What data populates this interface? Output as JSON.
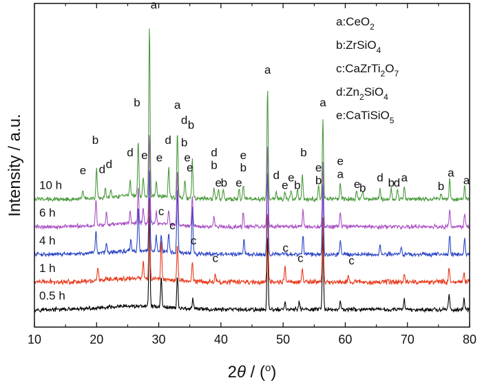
{
  "chart_data": {
    "type": "line",
    "xlabel": {
      "pre": "2",
      "theta": "θ",
      "post": " / (",
      "deg": "o",
      "close": ")"
    },
    "ylabel": "Intensity / a.u.",
    "xlim": [
      10,
      80
    ],
    "xticks": [
      10,
      20,
      30,
      40,
      50,
      60,
      70,
      80
    ],
    "legend_position": "top-right",
    "legend": [
      {
        "key": "a",
        "parts": [
          [
            "a:CeO",
            ""
          ],
          [
            "2",
            "sub"
          ]
        ]
      },
      {
        "key": "b",
        "parts": [
          [
            "b:ZrSiO",
            ""
          ],
          [
            "4",
            "sub"
          ]
        ]
      },
      {
        "key": "c",
        "parts": [
          [
            "c:CaZrTi",
            ""
          ],
          [
            "2",
            "sub"
          ],
          [
            "O",
            ""
          ],
          [
            "7",
            "sub"
          ]
        ]
      },
      {
        "key": "d",
        "parts": [
          [
            "d:Zn",
            ""
          ],
          [
            "2",
            "sub"
          ],
          [
            "SiO",
            ""
          ],
          [
            "4",
            "sub"
          ]
        ]
      },
      {
        "key": "e",
        "parts": [
          [
            "e:CaTiSiO",
            ""
          ],
          [
            "5",
            "sub"
          ]
        ]
      }
    ],
    "series": [
      {
        "name": "0.5 h",
        "color": "#000000",
        "offset": 0,
        "noise": 0.05,
        "peaks": [
          [
            28.5,
            1.8
          ],
          [
            30.4,
            0.6
          ],
          [
            33.0,
            0.65
          ],
          [
            35.5,
            0.18
          ],
          [
            47.5,
            1.45
          ],
          [
            50.3,
            0.15
          ],
          [
            52.6,
            0.18
          ],
          [
            56.4,
            1.5
          ],
          [
            59.2,
            0.18
          ],
          [
            69.5,
            0.2
          ],
          [
            76.7,
            0.3
          ],
          [
            79.1,
            0.2
          ]
        ]
      },
      {
        "name": "1 h",
        "color": "#e8391c",
        "offset": 0.55,
        "noise": 0.06,
        "peaks": [
          [
            20.2,
            0.3
          ],
          [
            27.5,
            0.35
          ],
          [
            28.5,
            1.6
          ],
          [
            30.4,
            0.8
          ],
          [
            33.0,
            0.7
          ],
          [
            35.4,
            0.4
          ],
          [
            39.1,
            0.15
          ],
          [
            47.5,
            1.4
          ],
          [
            50.3,
            0.3
          ],
          [
            53.1,
            0.25
          ],
          [
            56.4,
            1.3
          ],
          [
            60.5,
            0.15
          ],
          [
            69.5,
            0.15
          ],
          [
            76.7,
            0.3
          ],
          [
            79.1,
            0.2
          ]
        ]
      },
      {
        "name": "4 h",
        "color": "#2b46c4",
        "offset": 1.1,
        "noise": 0.05,
        "peaks": [
          [
            19.9,
            0.45
          ],
          [
            21.6,
            0.2
          ],
          [
            25.5,
            0.2
          ],
          [
            26.7,
            0.9
          ],
          [
            28.5,
            1.6
          ],
          [
            29.6,
            0.3
          ],
          [
            30.4,
            0.35
          ],
          [
            31.6,
            0.35
          ],
          [
            33.0,
            1.3
          ],
          [
            35.4,
            0.9
          ],
          [
            43.7,
            0.3
          ],
          [
            47.5,
            1.7
          ],
          [
            53.2,
            0.4
          ],
          [
            56.4,
            1.4
          ],
          [
            59.2,
            0.3
          ],
          [
            65.6,
            0.2
          ],
          [
            69.0,
            0.15
          ],
          [
            76.8,
            0.4
          ],
          [
            79.2,
            0.3
          ]
        ]
      },
      {
        "name": "6 h",
        "color": "#a94fc4",
        "offset": 1.65,
        "noise": 0.05,
        "peaks": [
          [
            19.9,
            0.55
          ],
          [
            21.6,
            0.25
          ],
          [
            25.4,
            0.25
          ],
          [
            26.7,
            0.7
          ],
          [
            27.5,
            0.3
          ],
          [
            28.5,
            1.8
          ],
          [
            29.6,
            0.25
          ],
          [
            31.6,
            0.3
          ],
          [
            33.0,
            1.1
          ],
          [
            35.4,
            0.6
          ],
          [
            38.9,
            0.2
          ],
          [
            43.6,
            0.3
          ],
          [
            47.5,
            1.6
          ],
          [
            53.2,
            0.35
          ],
          [
            56.4,
            1.3
          ],
          [
            59.2,
            0.3
          ],
          [
            76.8,
            0.35
          ],
          [
            79.2,
            0.25
          ]
        ]
      },
      {
        "name": "10 h",
        "color": "#4a9a3c",
        "offset": 2.2,
        "noise": 0.05,
        "peaks": [
          [
            17.8,
            0.15
          ],
          [
            20.0,
            0.6
          ],
          [
            21.4,
            0.2
          ],
          [
            22.3,
            0.18
          ],
          [
            25.4,
            0.3
          ],
          [
            26.7,
            1.1
          ],
          [
            27.5,
            0.35
          ],
          [
            28.5,
            3.4
          ],
          [
            29.6,
            0.3
          ],
          [
            31.6,
            0.6
          ],
          [
            33.0,
            1.3
          ],
          [
            34.2,
            0.35
          ],
          [
            35.4,
            0.8
          ],
          [
            38.9,
            0.25
          ],
          [
            39.6,
            0.2
          ],
          [
            40.4,
            0.18
          ],
          [
            42.9,
            0.2
          ],
          [
            43.6,
            0.3
          ],
          [
            47.5,
            2.2
          ],
          [
            48.9,
            0.15
          ],
          [
            50.3,
            0.15
          ],
          [
            51.3,
            0.2
          ],
          [
            52.3,
            0.2
          ],
          [
            53.1,
            0.5
          ],
          [
            55.7,
            0.25
          ],
          [
            56.4,
            1.6
          ],
          [
            59.2,
            0.35
          ],
          [
            61.8,
            0.15
          ],
          [
            62.8,
            0.15
          ],
          [
            65.6,
            0.2
          ],
          [
            67.4,
            0.2
          ],
          [
            68.4,
            0.2
          ],
          [
            69.5,
            0.25
          ],
          [
            75.4,
            0.1
          ],
          [
            76.8,
            0.4
          ],
          [
            79.2,
            0.3
          ]
        ]
      }
    ],
    "annotations": [
      {
        "text": "a",
        "x": 29.2,
        "y": 6.0
      },
      {
        "text": "b",
        "x": 26.5,
        "y": 4.05
      },
      {
        "text": "a",
        "x": 33.0,
        "y": 4.0
      },
      {
        "text": "d",
        "x": 34.1,
        "y": 3.7
      },
      {
        "text": "b",
        "x": 35.2,
        "y": 3.6
      },
      {
        "text": "b",
        "x": 34.1,
        "y": 3.25
      },
      {
        "text": "e",
        "x": 34.6,
        "y": 2.95
      },
      {
        "text": "e",
        "x": 35.0,
        "y": 2.75
      },
      {
        "text": "d",
        "x": 31.5,
        "y": 3.3
      },
      {
        "text": "e",
        "x": 30.1,
        "y": 2.95
      },
      {
        "text": "e",
        "x": 27.7,
        "y": 3.0
      },
      {
        "text": "d",
        "x": 25.4,
        "y": 3.05
      },
      {
        "text": "b",
        "x": 19.8,
        "y": 3.3
      },
      {
        "text": "e",
        "x": 17.8,
        "y": 2.7
      },
      {
        "text": "d",
        "x": 20.9,
        "y": 2.72
      },
      {
        "text": "d",
        "x": 22.0,
        "y": 2.82
      },
      {
        "text": "d",
        "x": 38.9,
        "y": 3.05
      },
      {
        "text": "b",
        "x": 38.9,
        "y": 2.8
      },
      {
        "text": "e",
        "x": 39.6,
        "y": 2.45
      },
      {
        "text": "b",
        "x": 40.5,
        "y": 2.45
      },
      {
        "text": "e",
        "x": 43.6,
        "y": 3.0
      },
      {
        "text": "b",
        "x": 43.6,
        "y": 2.75
      },
      {
        "text": "e",
        "x": 42.9,
        "y": 2.45
      },
      {
        "text": "a",
        "x": 47.5,
        "y": 4.7
      },
      {
        "text": "d",
        "x": 48.9,
        "y": 2.6
      },
      {
        "text": "e",
        "x": 50.3,
        "y": 2.4
      },
      {
        "text": "e",
        "x": 51.3,
        "y": 2.55
      },
      {
        "text": "b",
        "x": 52.3,
        "y": 2.4
      },
      {
        "text": "b",
        "x": 53.3,
        "y": 3.05
      },
      {
        "text": "e",
        "x": 55.7,
        "y": 2.75
      },
      {
        "text": "b",
        "x": 55.7,
        "y": 2.5
      },
      {
        "text": "a",
        "x": 56.4,
        "y": 4.05
      },
      {
        "text": "e",
        "x": 59.2,
        "y": 2.88
      },
      {
        "text": "a",
        "x": 59.2,
        "y": 2.62
      },
      {
        "text": "e",
        "x": 61.9,
        "y": 2.42
      },
      {
        "text": "b",
        "x": 62.8,
        "y": 2.35
      },
      {
        "text": "d",
        "x": 65.6,
        "y": 2.55
      },
      {
        "text": "b",
        "x": 67.4,
        "y": 2.45
      },
      {
        "text": "d",
        "x": 68.3,
        "y": 2.45
      },
      {
        "text": "a",
        "x": 69.5,
        "y": 2.55
      },
      {
        "text": "b",
        "x": 75.4,
        "y": 2.38
      },
      {
        "text": "a",
        "x": 77.0,
        "y": 2.65
      },
      {
        "text": "a",
        "x": 79.5,
        "y": 2.5
      },
      {
        "text": "c",
        "x": 30.4,
        "y": 1.88
      },
      {
        "text": "c",
        "x": 32.2,
        "y": 1.6
      },
      {
        "text": "c",
        "x": 35.6,
        "y": 1.3
      },
      {
        "text": "c",
        "x": 39.1,
        "y": 0.95
      },
      {
        "text": "c",
        "x": 50.4,
        "y": 1.15
      },
      {
        "text": "c",
        "x": 52.8,
        "y": 0.95
      },
      {
        "text": "c",
        "x": 61.0,
        "y": 0.9
      }
    ]
  }
}
